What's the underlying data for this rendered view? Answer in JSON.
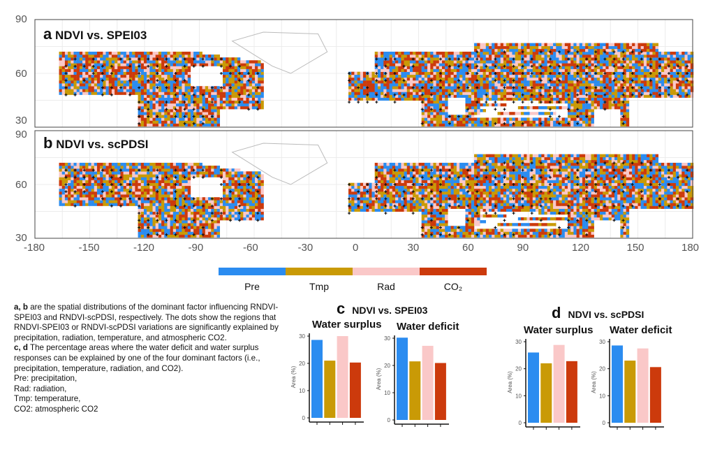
{
  "maps": {
    "panels": [
      {
        "letter": "a",
        "title": "NDVI vs. SPEI03"
      },
      {
        "letter": "b",
        "title": "NDVI vs. scPDSI"
      }
    ],
    "lat_ticks": [
      "90",
      "60",
      "30"
    ],
    "lon_ticks": [
      "-180",
      "-150",
      "-120",
      "-90",
      "-60",
      "-30",
      "0",
      "30",
      "60",
      "90",
      "120",
      "150",
      "180"
    ],
    "lat_range": [
      30,
      90
    ],
    "lon_range": [
      -180,
      180
    ],
    "grid": true
  },
  "legend": {
    "items": [
      {
        "label": "Pre",
        "color": "#2b8cf0"
      },
      {
        "label": "Tmp",
        "color": "#c99a06"
      },
      {
        "label": "Rad",
        "color": "#fac8c8"
      },
      {
        "label": "CO₂",
        "color": "#cc3a0c"
      }
    ]
  },
  "caption": {
    "p1_bold": "a, b",
    "p1": " are the spatial distributions of the dominant factor influencing RNDVI-SPEI03 and RNDVI-scPDSI, respectively. The dots show the regions that RNDVI-SPEI03 or RNDVI-scPDSI variations are significantly explained by precipitation, radiation, temperature, and atmospheric CO2.",
    "p2_bold": "c, d",
    "p2": " The percentage areas where the water deficit and water surplus responses can be explained by one of the four dominant factors (i.e., precipitation, temperature, radiation, and CO2).",
    "lines": [
      "Pre: precipitation,",
      "Rad: radiation,",
      "Tmp: temperature,",
      "CO2: atmospheric CO2"
    ]
  },
  "groups": [
    {
      "letter": "c",
      "title": "NDVI vs. SPEI03"
    },
    {
      "letter": "d",
      "title": "NDVI vs. scPDSI"
    }
  ],
  "chart_data": [
    {
      "type": "bar",
      "group": "c",
      "title": "Water surplus",
      "ylabel": "Area (%)",
      "categories": [
        "Pre",
        "Tmp",
        "Rad",
        "CO2"
      ],
      "values": [
        28.6,
        21.0,
        30.0,
        20.3
      ],
      "ylim": [
        0,
        30
      ],
      "yticks": [
        "0",
        "10",
        "20",
        "30"
      ]
    },
    {
      "type": "bar",
      "group": "c",
      "title": "Water deficit",
      "ylabel": "Area (%)",
      "categories": [
        "Pre",
        "Tmp",
        "Rad",
        "CO2"
      ],
      "values": [
        30.2,
        21.5,
        27.2,
        20.9
      ],
      "ylim": [
        0,
        30
      ],
      "yticks": [
        "0",
        "10",
        "20",
        "30"
      ]
    },
    {
      "type": "bar",
      "group": "d",
      "title": "Water surplus",
      "ylabel": "Area (%)",
      "categories": [
        "Pre",
        "Tmp",
        "Rad",
        "CO2"
      ],
      "values": [
        26.0,
        22.0,
        28.8,
        22.8
      ],
      "ylim": [
        0,
        30
      ],
      "yticks": [
        "0",
        "10",
        "20",
        "30"
      ]
    },
    {
      "type": "bar",
      "group": "d",
      "title": "Water deficit",
      "ylabel": "Area (%)",
      "categories": [
        "Pre",
        "Tmp",
        "Rad",
        "CO2"
      ],
      "values": [
        28.6,
        23.0,
        27.5,
        20.6
      ],
      "ylim": [
        0,
        30
      ],
      "yticks": [
        "0",
        "10",
        "20",
        "30"
      ]
    }
  ]
}
